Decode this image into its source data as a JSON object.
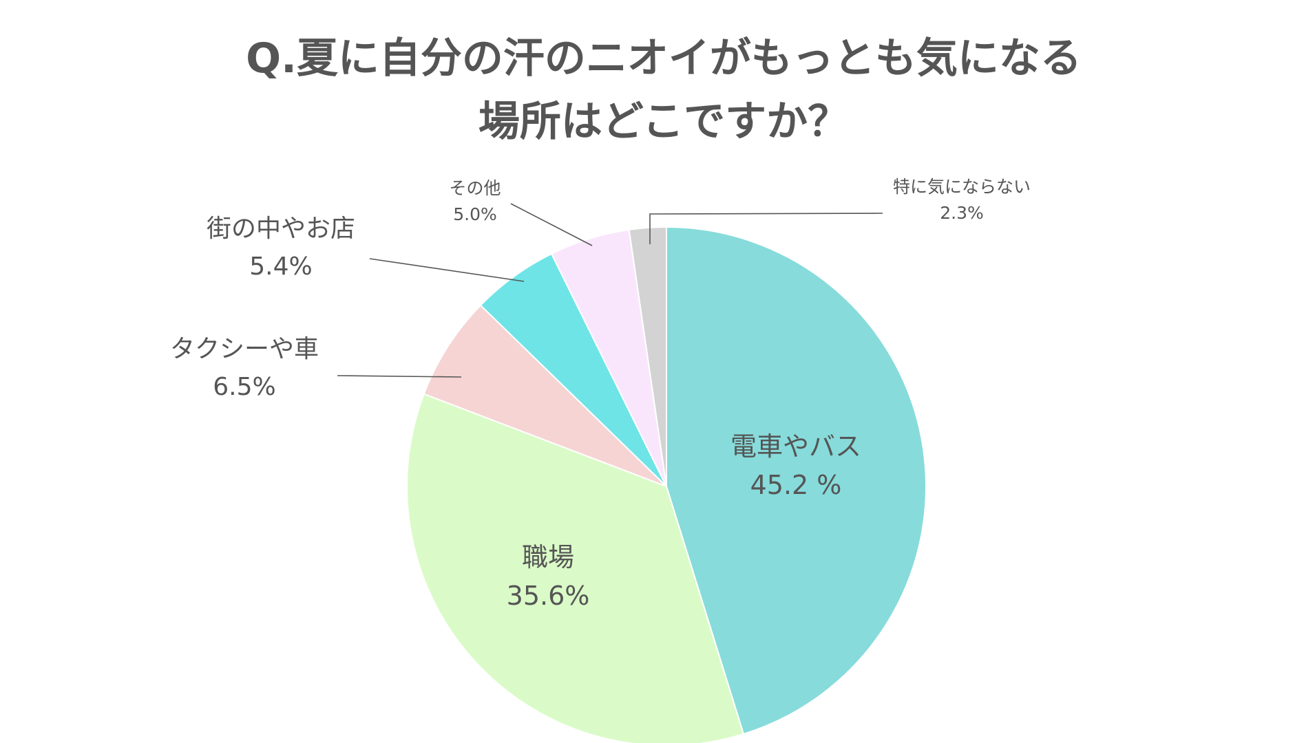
{
  "chart_data": {
    "type": "pie",
    "title_lines": [
      "Q.夏に自分の汗のニオイがもっとも気になる",
      "場所はどこですか？"
    ],
    "slices": [
      {
        "label": "電車やバス",
        "value": 45.2,
        "value_text": "45.2 %",
        "color": "#87dbdb"
      },
      {
        "label": "職場",
        "value": 35.6,
        "value_text": "35.6%",
        "color": "#dafbc8"
      },
      {
        "label": "タクシーや車",
        "value": 6.5,
        "value_text": "6.5%",
        "color": "#f5d4d3"
      },
      {
        "label": "街の中やお店",
        "value": 5.4,
        "value_text": "5.4%",
        "color": "#6ee4e7"
      },
      {
        "label": "その他",
        "value": 5.0,
        "value_text": "5.0%",
        "color": "#f9e6fc"
      },
      {
        "label": "特に気にならない",
        "value": 2.3,
        "value_text": "2.3%",
        "color": "#d3d3d3"
      }
    ],
    "start": "top",
    "direction": "clockwise"
  }
}
